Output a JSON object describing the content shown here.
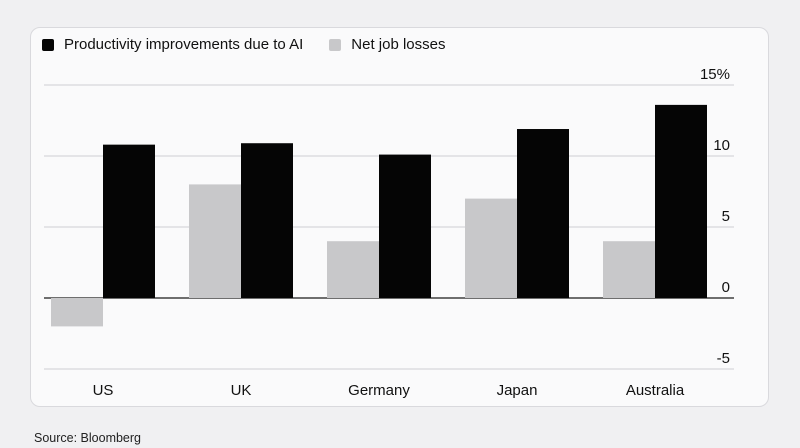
{
  "legend": {
    "series1": "Productivity improvements due to AI",
    "series2": "Net job losses"
  },
  "source": "Source: Bloomberg",
  "colors": {
    "productivity": "#050505",
    "job_losses": "#c8c8ca",
    "grid": "#cfcfd3",
    "zero_line": "#1a1a1a"
  },
  "chart_data": {
    "type": "bar",
    "title": "",
    "xlabel": "",
    "ylabel": "",
    "categories": [
      "US",
      "UK",
      "Germany",
      "Japan",
      "Australia"
    ],
    "series": [
      {
        "name": "Net job losses",
        "values": [
          -2,
          8,
          4,
          7,
          4
        ]
      },
      {
        "name": "Productivity improvements due to AI",
        "values": [
          10.8,
          10.9,
          10.1,
          11.9,
          13.6
        ]
      }
    ],
    "ylim": [
      -5,
      15
    ],
    "yticks": [
      -5,
      0,
      5,
      10,
      15
    ],
    "ytick_labels": [
      "-5",
      "0",
      "5",
      "10",
      "15%"
    ],
    "grid": true,
    "legend_position": "top-left"
  }
}
